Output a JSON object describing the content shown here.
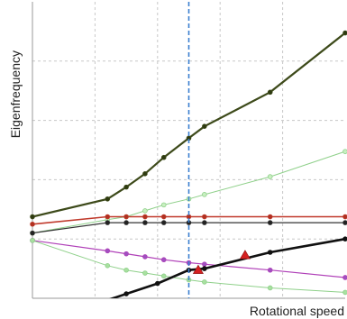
{
  "chart_data": {
    "type": "line",
    "title": "",
    "xlabel": "Rotational speed",
    "ylabel": "Eigenfrequency",
    "xlim": [
      0,
      10
    ],
    "ylim": [
      0,
      10
    ],
    "grid": true,
    "x_ticks": [
      0,
      2,
      4,
      6,
      8,
      10
    ],
    "y_ticks": [
      0,
      2,
      4,
      6,
      8,
      10
    ],
    "marker_line_x": 5,
    "colors": {
      "grid": "#c8c8c8",
      "marker_line": "#3a7fd0",
      "highlight": "#d42020"
    },
    "series": [
      {
        "color": "#3d4a1a",
        "width": 2.2,
        "marker_fill": "#2e3a10",
        "x": [
          0,
          2.4,
          3,
          3.6,
          4.2,
          5,
          5.5,
          7.6,
          10
        ],
        "y": [
          2.75,
          3.35,
          3.75,
          4.2,
          4.75,
          5.4,
          5.8,
          6.95,
          8.95
        ]
      },
      {
        "color": "#8fd08a",
        "width": 1,
        "marker_fill": "#c8efc0",
        "x": [
          0,
          2.4,
          3,
          3.6,
          4.2,
          5,
          5.5,
          7.6,
          10
        ],
        "y": [
          2.2,
          2.65,
          2.75,
          2.95,
          3.15,
          3.35,
          3.5,
          4.1,
          4.95
        ]
      },
      {
        "color": "#c0392b",
        "width": 1.6,
        "marker_fill": "#b03020",
        "x": [
          0,
          2.4,
          3,
          3.6,
          4.2,
          5,
          5.5,
          7.6,
          10
        ],
        "y": [
          2.5,
          2.75,
          2.75,
          2.75,
          2.75,
          2.75,
          2.75,
          2.75,
          2.75
        ]
      },
      {
        "color": "#333333",
        "width": 1.2,
        "marker_fill": "#222222",
        "x": [
          0,
          2.4,
          3,
          3.6,
          4.2,
          5,
          5.5,
          7.6,
          10
        ],
        "y": [
          2.2,
          2.55,
          2.55,
          2.55,
          2.55,
          2.55,
          2.55,
          2.55,
          2.55
        ]
      },
      {
        "color": "#b040b8",
        "width": 1.2,
        "marker_fill": "#a050c0",
        "x": [
          0,
          2.4,
          3,
          3.6,
          4.2,
          5,
          5.5,
          7.6,
          10
        ],
        "y": [
          1.95,
          1.6,
          1.5,
          1.4,
          1.3,
          1.2,
          1.15,
          0.95,
          0.7
        ]
      },
      {
        "color": "#8fd08a",
        "width": 1,
        "marker_fill": "#a8e0a0",
        "x": [
          0,
          2.4,
          3,
          3.6,
          4.2,
          5,
          5.5,
          7.6,
          10
        ],
        "y": [
          1.95,
          1.1,
          0.95,
          0.85,
          0.75,
          0.62,
          0.55,
          0.35,
          0.2
        ]
      },
      {
        "color": "#111111",
        "width": 2.6,
        "marker_fill": "#111111",
        "x": [
          0,
          2,
          3,
          4,
          5,
          5.5,
          7.6,
          10
        ],
        "y": [
          -0.95,
          -0.2,
          0.15,
          0.5,
          0.95,
          1.0,
          1.55,
          2.0
        ]
      }
    ],
    "highlight_points": [
      {
        "x": 5.3,
        "y": 0.95
      },
      {
        "x": 6.8,
        "y": 1.45
      }
    ]
  }
}
